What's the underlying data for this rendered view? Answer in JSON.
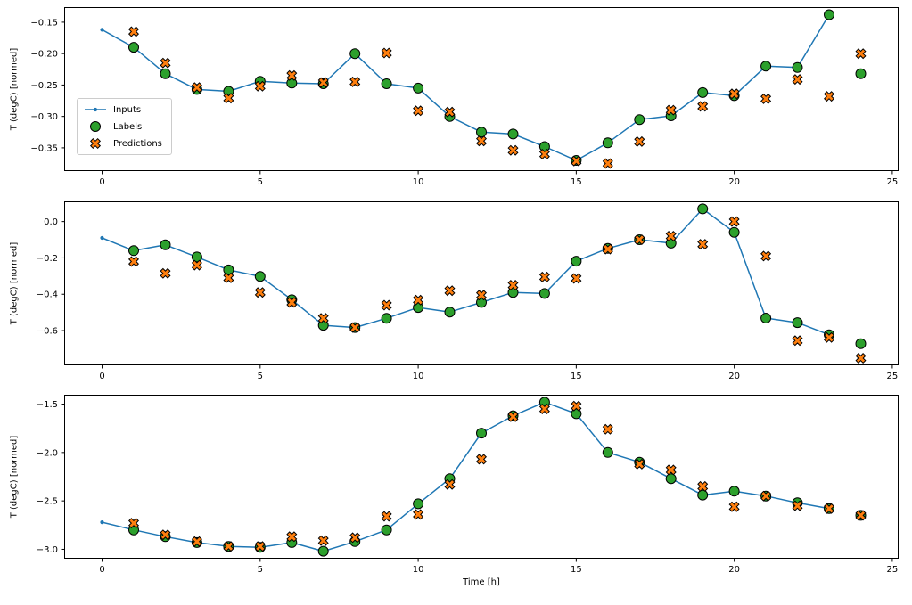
{
  "figure": {
    "xlabel": "Time [h]",
    "background": "#ffffff"
  },
  "colors": {
    "inputs": "#1f77b4",
    "labels": "#2ca02c",
    "predictions": "#ff7f0e",
    "marker_edge": "#000000"
  },
  "legend": {
    "position": "upper-left of subplot 1",
    "items": [
      {
        "label": "Inputs",
        "marker": "line-dot",
        "color": "#1f77b4"
      },
      {
        "label": "Labels",
        "marker": "circle",
        "color": "#2ca02c"
      },
      {
        "label": "Predictions",
        "marker": "x",
        "color": "#ff7f0e"
      }
    ]
  },
  "chart_data": [
    {
      "type": "line",
      "ylabel": "T (degC) [normed]",
      "xlim": [
        -1.2,
        25.2
      ],
      "ylim": [
        -0.387,
        -0.126
      ],
      "xticks": [
        0,
        5,
        10,
        15,
        20,
        25
      ],
      "xtick_labels": [
        "0",
        "5",
        "10",
        "15",
        "20",
        "25"
      ],
      "yticks": [
        -0.15,
        -0.2,
        -0.25,
        -0.3,
        -0.35
      ],
      "ytick_labels": [
        "−0.15",
        "−0.20",
        "−0.25",
        "−0.30",
        "−0.35"
      ],
      "series": [
        {
          "name": "Inputs",
          "x": [
            0,
            1,
            2,
            3,
            4,
            5,
            6,
            7,
            8,
            9,
            10,
            11,
            12,
            13,
            14,
            15,
            16,
            17,
            18,
            19,
            20,
            21,
            22,
            23
          ],
          "values": [
            -0.162,
            -0.19,
            -0.232,
            -0.257,
            -0.26,
            -0.244,
            -0.247,
            -0.248,
            -0.2,
            -0.248,
            -0.255,
            -0.3,
            -0.325,
            -0.328,
            -0.348,
            -0.37,
            -0.342,
            -0.305,
            -0.299,
            -0.262,
            -0.267,
            -0.22,
            -0.222,
            -0.138
          ]
        },
        {
          "name": "Labels",
          "x": [
            1,
            2,
            3,
            4,
            5,
            6,
            7,
            8,
            9,
            10,
            11,
            12,
            13,
            14,
            15,
            16,
            17,
            18,
            19,
            20,
            21,
            22,
            23,
            24
          ],
          "values": [
            -0.19,
            -0.232,
            -0.257,
            -0.26,
            -0.244,
            -0.247,
            -0.248,
            -0.2,
            -0.248,
            -0.255,
            -0.3,
            -0.325,
            -0.328,
            -0.348,
            -0.37,
            -0.342,
            -0.305,
            -0.299,
            -0.262,
            -0.267,
            -0.22,
            -0.222,
            -0.138,
            -0.232
          ]
        },
        {
          "name": "Predictions",
          "x": [
            1,
            2,
            3,
            4,
            5,
            6,
            7,
            8,
            9,
            10,
            11,
            12,
            13,
            14,
            15,
            16,
            17,
            18,
            19,
            20,
            21,
            22,
            23,
            24
          ],
          "values": [
            -0.165,
            -0.215,
            -0.254,
            -0.271,
            -0.252,
            -0.235,
            -0.246,
            -0.245,
            -0.199,
            -0.291,
            -0.293,
            -0.339,
            -0.354,
            -0.36,
            -0.371,
            -0.375,
            -0.34,
            -0.29,
            -0.284,
            -0.264,
            -0.272,
            -0.241,
            -0.268,
            -0.2
          ]
        }
      ]
    },
    {
      "type": "line",
      "ylabel": "T (degC) [normed]",
      "xlim": [
        -1.2,
        25.2
      ],
      "ylim": [
        -0.791,
        0.111
      ],
      "xticks": [
        0,
        5,
        10,
        15,
        20,
        25
      ],
      "xtick_labels": [
        "0",
        "5",
        "10",
        "15",
        "20",
        "25"
      ],
      "yticks": [
        0.0,
        -0.2,
        -0.4,
        -0.6
      ],
      "ytick_labels": [
        "0.0",
        "−0.2",
        "−0.4",
        "−0.6"
      ],
      "series": [
        {
          "name": "Inputs",
          "x": [
            0,
            1,
            2,
            3,
            4,
            5,
            6,
            7,
            8,
            9,
            10,
            11,
            12,
            13,
            14,
            15,
            16,
            17,
            18,
            19,
            20,
            21,
            22,
            23
          ],
          "values": [
            -0.09,
            -0.16,
            -0.128,
            -0.195,
            -0.266,
            -0.302,
            -0.43,
            -0.571,
            -0.583,
            -0.532,
            -0.473,
            -0.498,
            -0.445,
            -0.39,
            -0.396,
            -0.218,
            -0.148,
            -0.1,
            -0.119,
            0.07,
            -0.059,
            -0.531,
            -0.556,
            -0.623
          ]
        },
        {
          "name": "Labels",
          "x": [
            1,
            2,
            3,
            4,
            5,
            6,
            7,
            8,
            9,
            10,
            11,
            12,
            13,
            14,
            15,
            16,
            17,
            18,
            19,
            20,
            21,
            22,
            23,
            24
          ],
          "values": [
            -0.16,
            -0.128,
            -0.195,
            -0.266,
            -0.302,
            -0.43,
            -0.571,
            -0.583,
            -0.532,
            -0.473,
            -0.498,
            -0.445,
            -0.39,
            -0.396,
            -0.218,
            -0.148,
            -0.1,
            -0.119,
            0.07,
            -0.059,
            -0.531,
            -0.556,
            -0.623,
            -0.672
          ]
        },
        {
          "name": "Predictions",
          "x": [
            1,
            2,
            3,
            4,
            5,
            6,
            7,
            8,
            9,
            10,
            11,
            12,
            13,
            14,
            15,
            16,
            17,
            18,
            19,
            20,
            21,
            22,
            23,
            24
          ],
          "values": [
            -0.22,
            -0.285,
            -0.24,
            -0.31,
            -0.39,
            -0.445,
            -0.532,
            -0.583,
            -0.46,
            -0.432,
            -0.38,
            -0.405,
            -0.35,
            -0.305,
            -0.313,
            -0.152,
            -0.1,
            -0.08,
            -0.125,
            0.0,
            -0.19,
            -0.655,
            -0.638,
            -0.752
          ]
        }
      ]
    },
    {
      "type": "line",
      "ylabel": "T (degC) [normed]",
      "xlim": [
        -1.2,
        25.2
      ],
      "ylim": [
        -3.097,
        -1.403
      ],
      "xticks": [
        0,
        5,
        10,
        15,
        20,
        25
      ],
      "xtick_labels": [
        "0",
        "5",
        "10",
        "15",
        "20",
        "25"
      ],
      "yticks": [
        -1.5,
        -2.0,
        -2.5,
        -3.0
      ],
      "ytick_labels": [
        "−1.5",
        "−2.0",
        "−2.5",
        "−3.0"
      ],
      "series": [
        {
          "name": "Inputs",
          "x": [
            0,
            1,
            2,
            3,
            4,
            5,
            6,
            7,
            8,
            9,
            10,
            11,
            12,
            13,
            14,
            15,
            16,
            17,
            18,
            19,
            20,
            21,
            22,
            23
          ],
          "values": [
            -2.72,
            -2.8,
            -2.87,
            -2.93,
            -2.97,
            -2.98,
            -2.93,
            -3.02,
            -2.92,
            -2.8,
            -2.53,
            -2.27,
            -1.8,
            -1.62,
            -1.48,
            -1.6,
            -2.0,
            -2.1,
            -2.27,
            -2.44,
            -2.4,
            -2.45,
            -2.52,
            -2.58
          ]
        },
        {
          "name": "Labels",
          "x": [
            1,
            2,
            3,
            4,
            5,
            6,
            7,
            8,
            9,
            10,
            11,
            12,
            13,
            14,
            15,
            16,
            17,
            18,
            19,
            20,
            21,
            22,
            23,
            24
          ],
          "values": [
            -2.8,
            -2.87,
            -2.93,
            -2.97,
            -2.98,
            -2.93,
            -3.02,
            -2.92,
            -2.8,
            -2.53,
            -2.27,
            -1.8,
            -1.62,
            -1.48,
            -1.6,
            -2.0,
            -2.1,
            -2.27,
            -2.44,
            -2.4,
            -2.45,
            -2.52,
            -2.58,
            -2.65
          ]
        },
        {
          "name": "Predictions",
          "x": [
            1,
            2,
            3,
            4,
            5,
            6,
            7,
            8,
            9,
            10,
            11,
            12,
            13,
            14,
            15,
            16,
            17,
            18,
            19,
            20,
            21,
            22,
            23,
            24
          ],
          "values": [
            -2.73,
            -2.85,
            -2.92,
            -2.97,
            -2.97,
            -2.87,
            -2.91,
            -2.88,
            -2.66,
            -2.64,
            -2.33,
            -2.07,
            -1.63,
            -1.55,
            -1.52,
            -1.76,
            -2.12,
            -2.18,
            -2.35,
            -2.56,
            -2.45,
            -2.55,
            -2.58,
            -2.65
          ]
        }
      ]
    }
  ]
}
